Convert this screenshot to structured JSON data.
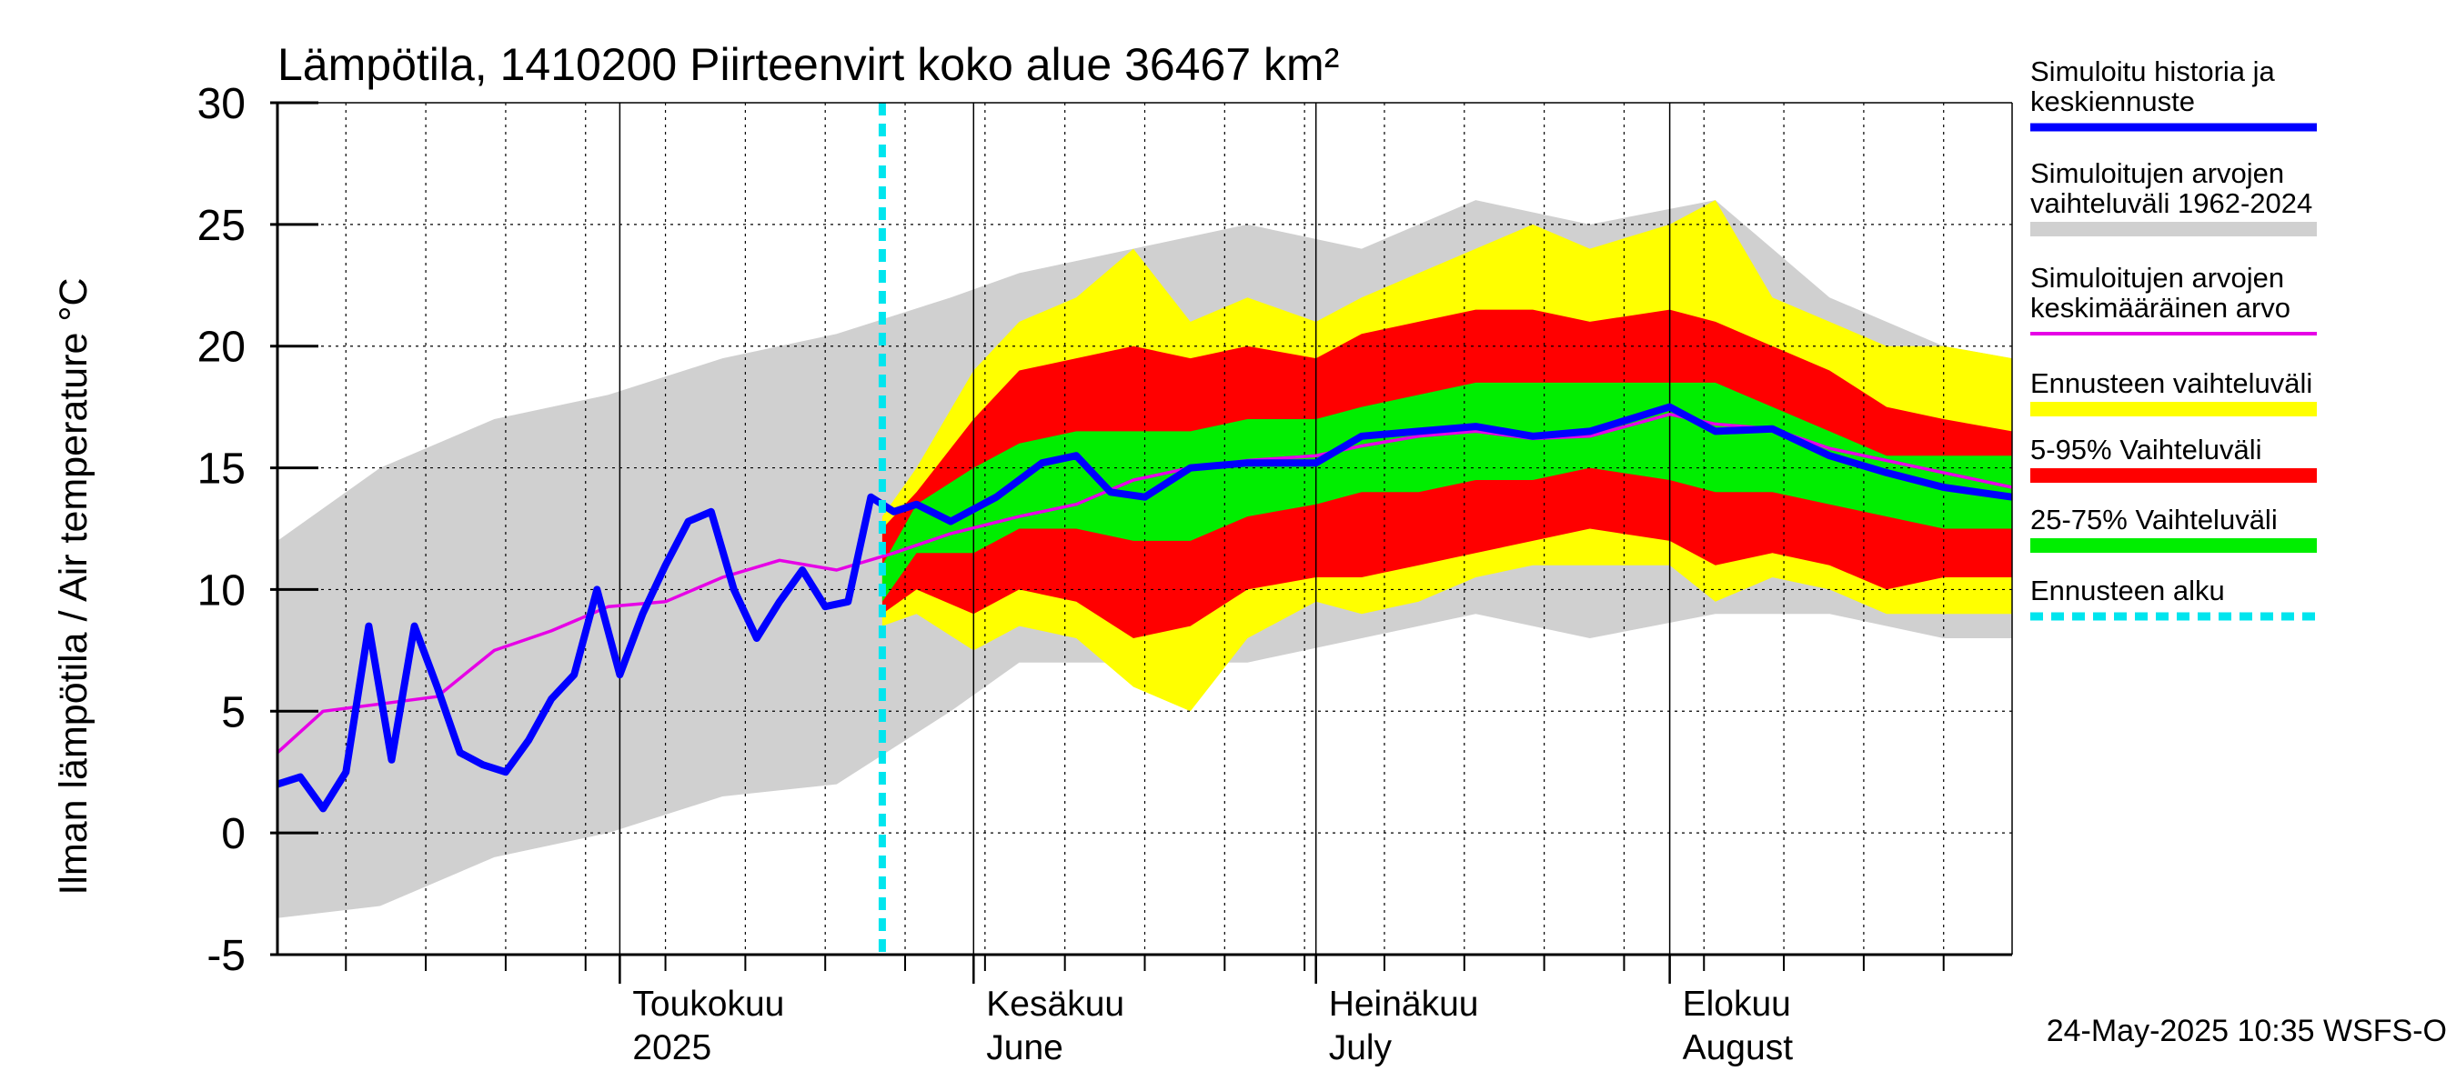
{
  "chart_data": {
    "type": "area",
    "title": "Lämpötila, 1410200 Piirteenvirt koko alue 36467 km²",
    "ylabel": "Ilman lämpötila / Air temperature   °C",
    "ylim": [
      -5,
      30
    ],
    "yticks": [
      -5,
      0,
      5,
      10,
      15,
      20,
      25,
      30
    ],
    "xlim": [
      "2025-04-01",
      "2025-08-31"
    ],
    "x_month_labels": [
      {
        "date": "2025-05-01",
        "line1": "Toukokuu",
        "line2": "2025"
      },
      {
        "date": "2025-06-01",
        "line1": "Kesäkuu",
        "line2": "June"
      },
      {
        "date": "2025-07-01",
        "line1": "Heinäkuu",
        "line2": "July"
      },
      {
        "date": "2025-08-01",
        "line1": "Elokuu",
        "line2": "August"
      }
    ],
    "forecast_start": "2025-05-24",
    "timestamp": "24-May-2025 10:35 WSFS-O",
    "grid": true,
    "legend_position": "right",
    "legend": [
      {
        "label": "Simuloitu historia ja keskiennuste",
        "color": "#0000ff",
        "style": "line"
      },
      {
        "label": "Simuloitujen arvojen vaihteluväli 1962-2024",
        "color": "#d0d0d0",
        "style": "band"
      },
      {
        "label": "Simuloitujen arvojen keskimääräinen arvo",
        "color": "#e600e6",
        "style": "line"
      },
      {
        "label": "Ennusteen vaihteluväli",
        "color": "#ffff00",
        "style": "band"
      },
      {
        "label": "5-95% Vaihteluväli",
        "color": "#ff0000",
        "style": "band"
      },
      {
        "label": "25-75% Vaihteluväli",
        "color": "#00ee00",
        "style": "band"
      },
      {
        "label": "Ennusteen alku",
        "color": "#00e5ee",
        "style": "dashed"
      }
    ],
    "series": [
      {
        "name": "Simuloitujen arvojen vaihteluväli 1962-2024",
        "type": "band",
        "x": [
          "2025-04-01",
          "2025-04-10",
          "2025-04-20",
          "2025-04-30",
          "2025-05-10",
          "2025-05-20",
          "2025-05-30",
          "2025-06-05",
          "2025-06-15",
          "2025-06-25",
          "2025-07-05",
          "2025-07-15",
          "2025-07-25",
          "2025-08-05",
          "2025-08-15",
          "2025-08-25",
          "2025-08-31"
        ],
        "low": [
          -3.5,
          -3,
          -1,
          0,
          1.5,
          2,
          5,
          7,
          7,
          7,
          8,
          9,
          8,
          9,
          9,
          8,
          8
        ],
        "high": [
          12,
          15,
          17,
          18,
          19.5,
          20.5,
          22,
          23,
          24,
          25,
          24,
          26,
          25,
          26,
          22,
          20,
          19.5
        ]
      },
      {
        "name": "Ennusteen vaihteluväli",
        "type": "band",
        "x": [
          "2025-05-24",
          "2025-05-27",
          "2025-06-01",
          "2025-06-05",
          "2025-06-10",
          "2025-06-15",
          "2025-06-20",
          "2025-06-25",
          "2025-07-01",
          "2025-07-05",
          "2025-07-10",
          "2025-07-15",
          "2025-07-20",
          "2025-07-25",
          "2025-08-01",
          "2025-08-05",
          "2025-08-10",
          "2025-08-15",
          "2025-08-20",
          "2025-08-25",
          "2025-08-31"
        ],
        "low": [
          8.5,
          9,
          7.5,
          8.5,
          8,
          6,
          5,
          8,
          9.5,
          9,
          9.5,
          10.5,
          11,
          11,
          11,
          9.5,
          10.5,
          10,
          9,
          9,
          9
        ],
        "high": [
          13,
          15,
          19,
          21,
          22,
          24,
          21,
          22,
          21,
          22,
          23,
          24,
          25,
          24,
          25,
          26,
          22,
          21,
          20,
          20,
          19.5
        ]
      },
      {
        "name": "5-95% Vaihteluväli",
        "type": "band",
        "x": [
          "2025-05-24",
          "2025-05-27",
          "2025-06-01",
          "2025-06-05",
          "2025-06-10",
          "2025-06-15",
          "2025-06-20",
          "2025-06-25",
          "2025-07-01",
          "2025-07-05",
          "2025-07-10",
          "2025-07-15",
          "2025-07-20",
          "2025-07-25",
          "2025-08-01",
          "2025-08-05",
          "2025-08-10",
          "2025-08-15",
          "2025-08-20",
          "2025-08-25",
          "2025-08-31"
        ],
        "low": [
          9,
          10,
          9,
          10,
          9.5,
          8,
          8.5,
          10,
          10.5,
          10.5,
          11,
          11.5,
          12,
          12.5,
          12,
          11,
          11.5,
          11,
          10,
          10.5,
          10.5
        ],
        "high": [
          12.5,
          14,
          17,
          19,
          19.5,
          20,
          19.5,
          20,
          19.5,
          20.5,
          21,
          21.5,
          21.5,
          21,
          21.5,
          21,
          20,
          19,
          17.5,
          17,
          16.5
        ]
      },
      {
        "name": "25-75% Vaihteluväli",
        "type": "band",
        "x": [
          "2025-05-24",
          "2025-05-27",
          "2025-06-01",
          "2025-06-05",
          "2025-06-10",
          "2025-06-15",
          "2025-06-20",
          "2025-06-25",
          "2025-07-01",
          "2025-07-05",
          "2025-07-10",
          "2025-07-15",
          "2025-07-20",
          "2025-07-25",
          "2025-08-01",
          "2025-08-05",
          "2025-08-10",
          "2025-08-15",
          "2025-08-20",
          "2025-08-25",
          "2025-08-31"
        ],
        "low": [
          9.5,
          11.5,
          11.5,
          12.5,
          12.5,
          12,
          12,
          13,
          13.5,
          14,
          14,
          14.5,
          14.5,
          15,
          14.5,
          14,
          14,
          13.5,
          13,
          12.5,
          12.5
        ],
        "high": [
          11,
          13.5,
          15,
          16,
          16.5,
          16.5,
          16.5,
          17,
          17,
          17.5,
          18,
          18.5,
          18.5,
          18.5,
          18.5,
          18.5,
          17.5,
          16.5,
          15.5,
          15.5,
          15.5
        ]
      },
      {
        "name": "Simuloitujen arvojen keskimääräinen arvo",
        "type": "line",
        "x": [
          "2025-04-01",
          "2025-04-05",
          "2025-04-10",
          "2025-04-15",
          "2025-04-20",
          "2025-04-25",
          "2025-04-30",
          "2025-05-05",
          "2025-05-10",
          "2025-05-15",
          "2025-05-20",
          "2025-05-25",
          "2025-05-30",
          "2025-06-05",
          "2025-06-10",
          "2025-06-15",
          "2025-06-20",
          "2025-06-25",
          "2025-07-01",
          "2025-07-05",
          "2025-07-10",
          "2025-07-15",
          "2025-07-20",
          "2025-07-25",
          "2025-08-01",
          "2025-08-05",
          "2025-08-10",
          "2025-08-15",
          "2025-08-20",
          "2025-08-25",
          "2025-08-31"
        ],
        "y": [
          3.3,
          5,
          5.3,
          5.6,
          7.5,
          8.3,
          9.3,
          9.5,
          10.5,
          11.2,
          10.8,
          11.5,
          12.3,
          13,
          13.5,
          14.5,
          15,
          15.3,
          15.5,
          15.9,
          16.3,
          16.5,
          16.2,
          16.3,
          17.2,
          16.8,
          16.6,
          15.8,
          15.3,
          14.8,
          14.2
        ]
      },
      {
        "name": "Simuloitu historia ja keskiennuste",
        "type": "line",
        "x": [
          "2025-04-01",
          "2025-04-03",
          "2025-04-05",
          "2025-04-07",
          "2025-04-09",
          "2025-04-11",
          "2025-04-13",
          "2025-04-15",
          "2025-04-17",
          "2025-04-19",
          "2025-04-21",
          "2025-04-23",
          "2025-04-25",
          "2025-04-27",
          "2025-04-29",
          "2025-05-01",
          "2025-05-03",
          "2025-05-05",
          "2025-05-07",
          "2025-05-09",
          "2025-05-11",
          "2025-05-13",
          "2025-05-15",
          "2025-05-17",
          "2025-05-19",
          "2025-05-21",
          "2025-05-23",
          "2025-05-25",
          "2025-05-27",
          "2025-05-30",
          "2025-06-03",
          "2025-06-07",
          "2025-06-10",
          "2025-06-13",
          "2025-06-16",
          "2025-06-20",
          "2025-06-25",
          "2025-07-01",
          "2025-07-05",
          "2025-07-10",
          "2025-07-15",
          "2025-07-20",
          "2025-07-25",
          "2025-08-01",
          "2025-08-05",
          "2025-08-10",
          "2025-08-15",
          "2025-08-20",
          "2025-08-25",
          "2025-08-31"
        ],
        "y": [
          2,
          2.3,
          1,
          2.5,
          8.5,
          3,
          8.5,
          6,
          3.3,
          2.8,
          2.5,
          3.8,
          5.5,
          6.5,
          10,
          6.5,
          9,
          11,
          12.8,
          13.2,
          10,
          8,
          9.5,
          10.8,
          9.3,
          9.5,
          13.8,
          13.2,
          13.5,
          12.8,
          13.8,
          15.2,
          15.5,
          14,
          13.8,
          15,
          15.2,
          15.2,
          16.3,
          16.5,
          16.7,
          16.3,
          16.5,
          17.5,
          16.5,
          16.6,
          15.5,
          14.8,
          14.2,
          13.8
        ]
      }
    ]
  }
}
